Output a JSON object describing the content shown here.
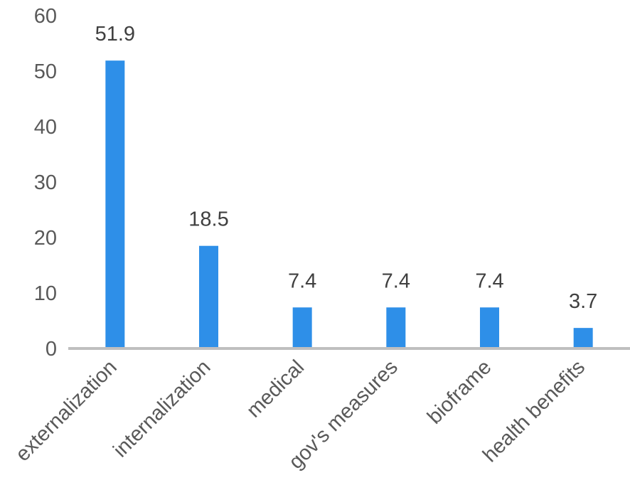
{
  "chart_data": {
    "type": "bar",
    "categories": [
      "externalization",
      "internalization",
      "medical",
      "gov's measures",
      "bioframe",
      "health benefits"
    ],
    "values": [
      51.9,
      18.5,
      7.4,
      7.4,
      7.4,
      3.7
    ],
    "value_labels": [
      "51.9",
      "18.5",
      "7.4",
      "7.4",
      "7.4",
      "3.7"
    ],
    "yticks": [
      "0",
      "10",
      "20",
      "30",
      "40",
      "50",
      "60"
    ],
    "ylim": [
      0,
      60
    ],
    "title": "",
    "xlabel": "",
    "ylabel": "",
    "grid": false,
    "legend": "none",
    "colors": {
      "bar": "#2E8FE8",
      "axis": "#BFBFBF"
    }
  }
}
